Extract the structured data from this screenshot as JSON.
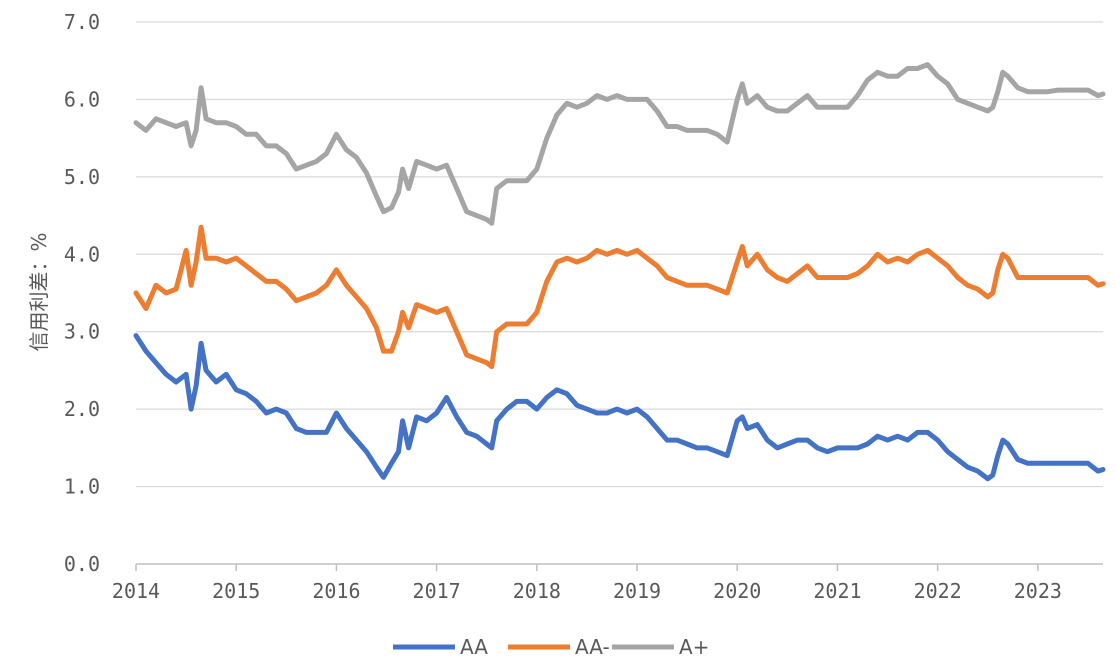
{
  "chart_data": {
    "type": "line",
    "title": "",
    "xlabel": "",
    "ylabel": "信用利差：%",
    "x_ticks": [
      "2014",
      "2015",
      "2016",
      "2017",
      "2018",
      "2019",
      "2020",
      "2021",
      "2022",
      "2023"
    ],
    "y_ticks": [
      "0.0",
      "1.0",
      "2.0",
      "3.0",
      "4.0",
      "5.0",
      "6.0",
      "7.0"
    ],
    "xlim": [
      2014.0,
      2023.65
    ],
    "ylim": [
      0,
      7
    ],
    "grid": "horizontal",
    "legend_position": "bottom",
    "x": [
      2014.0,
      2014.1,
      2014.2,
      2014.3,
      2014.4,
      2014.5,
      2014.55,
      2014.6,
      2014.65,
      2014.7,
      2014.8,
      2014.9,
      2015.0,
      2015.1,
      2015.2,
      2015.3,
      2015.4,
      2015.5,
      2015.6,
      2015.7,
      2015.8,
      2015.9,
      2016.0,
      2016.1,
      2016.2,
      2016.3,
      2016.4,
      2016.47,
      2016.55,
      2016.62,
      2016.66,
      2016.72,
      2016.8,
      2016.9,
      2017.0,
      2017.1,
      2017.2,
      2017.3,
      2017.4,
      2017.5,
      2017.55,
      2017.6,
      2017.7,
      2017.8,
      2017.9,
      2018.0,
      2018.1,
      2018.2,
      2018.3,
      2018.4,
      2018.5,
      2018.6,
      2018.7,
      2018.8,
      2018.9,
      2019.0,
      2019.1,
      2019.2,
      2019.3,
      2019.4,
      2019.5,
      2019.6,
      2019.7,
      2019.8,
      2019.9,
      2020.0,
      2020.05,
      2020.1,
      2020.2,
      2020.3,
      2020.4,
      2020.5,
      2020.6,
      2020.7,
      2020.8,
      2020.9,
      2021.0,
      2021.1,
      2021.2,
      2021.3,
      2021.4,
      2021.5,
      2021.6,
      2021.7,
      2021.8,
      2021.9,
      2022.0,
      2022.1,
      2022.2,
      2022.3,
      2022.4,
      2022.5,
      2022.55,
      2022.6,
      2022.65,
      2022.7,
      2022.8,
      2022.9,
      2023.0,
      2023.1,
      2023.2,
      2023.3,
      2023.4,
      2023.5,
      2023.6,
      2023.65
    ],
    "series": [
      {
        "name": "AA",
        "color": "#4472c4",
        "values": [
          2.95,
          2.75,
          2.6,
          2.45,
          2.35,
          2.45,
          2.0,
          2.3,
          2.85,
          2.5,
          2.35,
          2.45,
          2.25,
          2.2,
          2.1,
          1.95,
          2.0,
          1.95,
          1.75,
          1.7,
          1.7,
          1.7,
          1.95,
          1.75,
          1.6,
          1.45,
          1.25,
          1.12,
          1.3,
          1.45,
          1.85,
          1.5,
          1.9,
          1.85,
          1.95,
          2.15,
          1.9,
          1.7,
          1.65,
          1.55,
          1.5,
          1.85,
          2.0,
          2.1,
          2.1,
          2.0,
          2.15,
          2.25,
          2.2,
          2.05,
          2.0,
          1.95,
          1.95,
          2.0,
          1.95,
          2.0,
          1.9,
          1.75,
          1.6,
          1.6,
          1.55,
          1.5,
          1.5,
          1.45,
          1.4,
          1.85,
          1.9,
          1.75,
          1.8,
          1.6,
          1.5,
          1.55,
          1.6,
          1.6,
          1.5,
          1.45,
          1.5,
          1.5,
          1.5,
          1.55,
          1.65,
          1.6,
          1.65,
          1.6,
          1.7,
          1.7,
          1.6,
          1.45,
          1.35,
          1.25,
          1.2,
          1.1,
          1.15,
          1.4,
          1.6,
          1.55,
          1.35,
          1.3,
          1.3,
          1.3,
          1.3,
          1.3,
          1.3,
          1.3,
          1.2,
          1.22
        ]
      },
      {
        "name": "AA-",
        "color": "#ed7d31",
        "values": [
          3.5,
          3.3,
          3.6,
          3.5,
          3.55,
          4.05,
          3.6,
          3.9,
          4.35,
          3.95,
          3.95,
          3.9,
          3.95,
          3.85,
          3.75,
          3.65,
          3.65,
          3.55,
          3.4,
          3.45,
          3.5,
          3.6,
          3.8,
          3.6,
          3.45,
          3.3,
          3.05,
          2.75,
          2.75,
          3.0,
          3.25,
          3.05,
          3.35,
          3.3,
          3.25,
          3.3,
          3.0,
          2.7,
          2.65,
          2.6,
          2.55,
          3.0,
          3.1,
          3.1,
          3.1,
          3.25,
          3.65,
          3.9,
          3.95,
          3.9,
          3.95,
          4.05,
          4.0,
          4.05,
          4.0,
          4.05,
          3.95,
          3.85,
          3.7,
          3.65,
          3.6,
          3.6,
          3.6,
          3.55,
          3.5,
          3.9,
          4.1,
          3.85,
          4.0,
          3.8,
          3.7,
          3.65,
          3.75,
          3.85,
          3.7,
          3.7,
          3.7,
          3.7,
          3.75,
          3.85,
          4.0,
          3.9,
          3.95,
          3.9,
          4.0,
          4.05,
          3.95,
          3.85,
          3.7,
          3.6,
          3.55,
          3.45,
          3.5,
          3.8,
          4.0,
          3.95,
          3.7,
          3.7,
          3.7,
          3.7,
          3.7,
          3.7,
          3.7,
          3.7,
          3.6,
          3.62
        ]
      },
      {
        "name": "A+",
        "color": "#a5a5a5",
        "values": [
          5.7,
          5.6,
          5.75,
          5.7,
          5.65,
          5.7,
          5.4,
          5.6,
          6.15,
          5.75,
          5.7,
          5.7,
          5.65,
          5.55,
          5.55,
          5.4,
          5.4,
          5.3,
          5.1,
          5.15,
          5.2,
          5.3,
          5.55,
          5.35,
          5.25,
          5.05,
          4.75,
          4.55,
          4.6,
          4.8,
          5.1,
          4.85,
          5.2,
          5.15,
          5.1,
          5.15,
          4.85,
          4.55,
          4.5,
          4.45,
          4.4,
          4.85,
          4.95,
          4.95,
          4.95,
          5.1,
          5.5,
          5.8,
          5.95,
          5.9,
          5.95,
          6.05,
          6.0,
          6.05,
          6.0,
          6.0,
          6.0,
          5.85,
          5.65,
          5.65,
          5.6,
          5.6,
          5.6,
          5.55,
          5.45,
          6.0,
          6.2,
          5.95,
          6.05,
          5.9,
          5.85,
          5.85,
          5.95,
          6.05,
          5.9,
          5.9,
          5.9,
          5.9,
          6.05,
          6.25,
          6.35,
          6.3,
          6.3,
          6.4,
          6.4,
          6.45,
          6.3,
          6.2,
          6.0,
          5.95,
          5.9,
          5.85,
          5.9,
          6.1,
          6.35,
          6.3,
          6.15,
          6.1,
          6.1,
          6.1,
          6.12,
          6.12,
          6.12,
          6.12,
          6.05,
          6.07
        ]
      }
    ]
  }
}
